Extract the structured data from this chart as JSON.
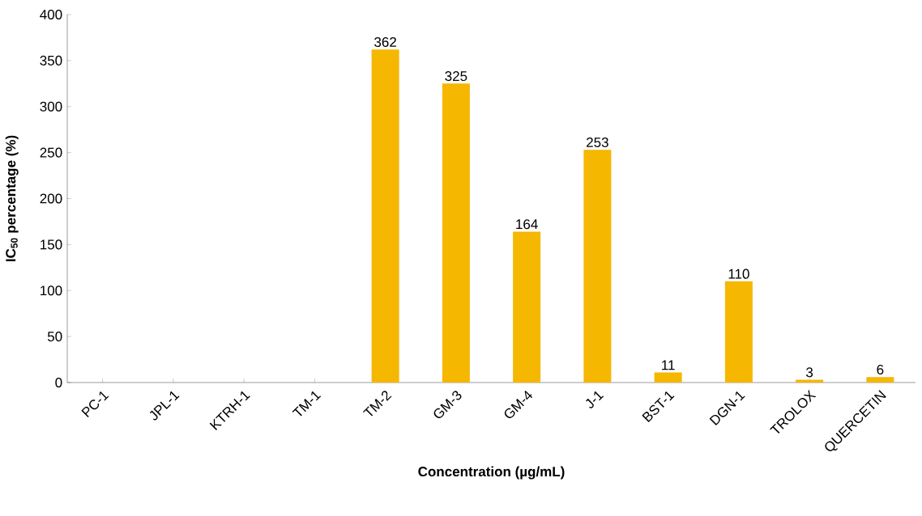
{
  "chart_data": {
    "type": "bar",
    "xlabel": "Concentration (µg/mL)",
    "ylabel": "IC$_{50}$ percentage (%)",
    "categories": [
      "PC-1",
      "JPL-1",
      "KTRH-1",
      "TM-1",
      "TM-2",
      "GM-3",
      "GM-4",
      "J-1",
      "BST-1",
      "DGN-1",
      "TROLOX",
      "QUERCETIN"
    ],
    "values": [
      null,
      null,
      null,
      null,
      362,
      325,
      164,
      253,
      11,
      110,
      3,
      6
    ],
    "color": "#f5b700",
    "ylim": [
      0,
      400
    ],
    "yticks": [
      0,
      50,
      100,
      150,
      200,
      250,
      300,
      350,
      400
    ],
    "data_labels": true
  }
}
